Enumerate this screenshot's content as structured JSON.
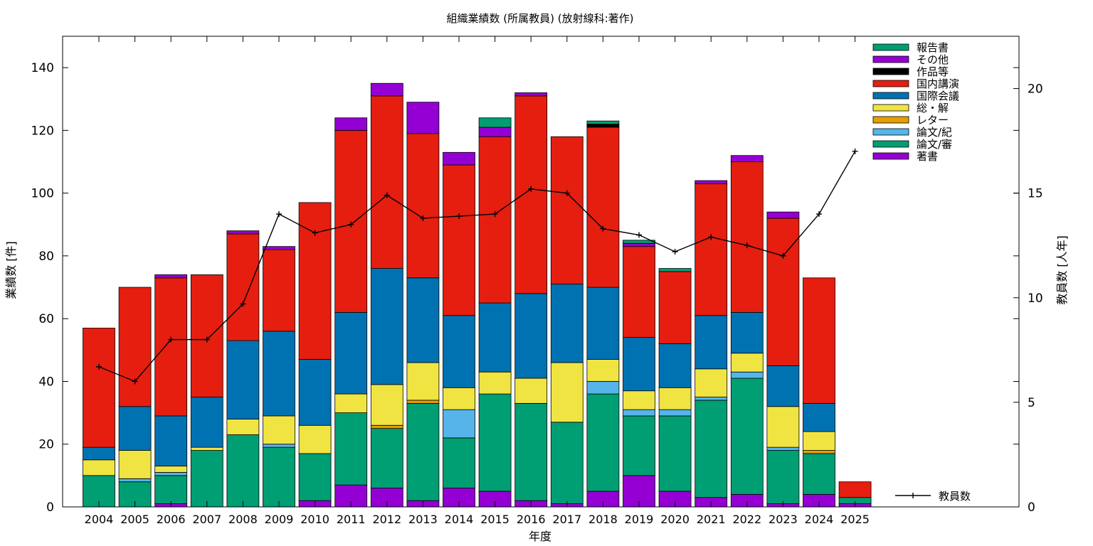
{
  "chart_data": {
    "type": "bar",
    "stacked": true,
    "title": "組織業績数 (所属教員) (放射線科:著作)",
    "xlabel": "年度",
    "ylabel": "業績数 [件]",
    "y2label": "教員数 [人年]",
    "ylim": [
      0,
      150
    ],
    "y2lim": [
      0,
      22.5
    ],
    "yticks": [
      "0",
      "20",
      "40",
      "60",
      "80",
      "100",
      "120",
      "140"
    ],
    "y2ticks": [
      "0",
      "5",
      "10",
      "15",
      "20"
    ],
    "grid": false,
    "legend_position": "top-right",
    "categories": [
      "2004",
      "2005",
      "2006",
      "2007",
      "2008",
      "2009",
      "2010",
      "2011",
      "2012",
      "2013",
      "2014",
      "2015",
      "2016",
      "2017",
      "2018",
      "2019",
      "2020",
      "2021",
      "2022",
      "2023",
      "2024",
      "2025"
    ],
    "series": [
      {
        "name": "著書",
        "color": "#9400d3",
        "values": [
          0,
          0,
          1,
          0,
          0,
          0,
          2,
          7,
          6,
          2,
          6,
          5,
          2,
          1,
          5,
          10,
          5,
          3,
          4,
          1,
          4,
          1
        ]
      },
      {
        "name": "論文/審",
        "color": "#009e73",
        "values": [
          10,
          8,
          9,
          18,
          23,
          19,
          15,
          23,
          19,
          31,
          16,
          31,
          31,
          26,
          31,
          19,
          24,
          31,
          37,
          17,
          13,
          2
        ]
      },
      {
        "name": "論文/紀",
        "color": "#56b4e9",
        "values": [
          0,
          1,
          1,
          0,
          0,
          1,
          0,
          0,
          0,
          0,
          9,
          0,
          0,
          0,
          4,
          2,
          2,
          1,
          2,
          1,
          0,
          0
        ]
      },
      {
        "name": "レター",
        "color": "#e69f00",
        "values": [
          0,
          0,
          0,
          0,
          0,
          0,
          0,
          0,
          1,
          1,
          0,
          0,
          0,
          0,
          0,
          0,
          0,
          0,
          0,
          0,
          1,
          0
        ]
      },
      {
        "name": "総・解",
        "color": "#f0e442",
        "values": [
          5,
          9,
          2,
          1,
          5,
          9,
          9,
          6,
          13,
          12,
          7,
          7,
          8,
          19,
          7,
          6,
          7,
          9,
          6,
          13,
          6,
          0
        ]
      },
      {
        "name": "国際会議",
        "color": "#0072b2",
        "values": [
          4,
          14,
          16,
          16,
          25,
          27,
          21,
          26,
          37,
          27,
          23,
          22,
          27,
          25,
          23,
          17,
          14,
          17,
          13,
          13,
          9,
          0
        ]
      },
      {
        "name": "国内講演",
        "color": "#e51e10",
        "values": [
          38,
          38,
          44,
          39,
          34,
          26,
          50,
          58,
          55,
          46,
          48,
          53,
          63,
          47,
          51,
          29,
          23,
          42,
          48,
          47,
          40,
          5
        ]
      },
      {
        "name": "作品等",
        "color": "#000000",
        "values": [
          0,
          0,
          0,
          0,
          0,
          0,
          0,
          0,
          0,
          0,
          0,
          0,
          0,
          0,
          1,
          0,
          0,
          0,
          0,
          0,
          0,
          0
        ]
      },
      {
        "name": "その他",
        "color": "#9400d3",
        "values": [
          0,
          0,
          1,
          0,
          1,
          1,
          0,
          4,
          4,
          10,
          4,
          3,
          1,
          0,
          0,
          1,
          0,
          1,
          2,
          2,
          0,
          0
        ]
      },
      {
        "name": "報告書",
        "color": "#009e73",
        "values": [
          0,
          0,
          0,
          0,
          0,
          0,
          0,
          0,
          0,
          0,
          0,
          3,
          0,
          0,
          1,
          1,
          1,
          0,
          0,
          0,
          0,
          0
        ]
      }
    ],
    "line": {
      "name": "教員数",
      "color": "#000000",
      "values": [
        6.7,
        6.0,
        8.0,
        8.0,
        9.7,
        14.0,
        13.1,
        13.5,
        14.9,
        13.8,
        13.9,
        14.0,
        15.2,
        15.0,
        13.3,
        13.0,
        12.2,
        12.9,
        12.5,
        12.0,
        14.0,
        17.0
      ]
    }
  }
}
